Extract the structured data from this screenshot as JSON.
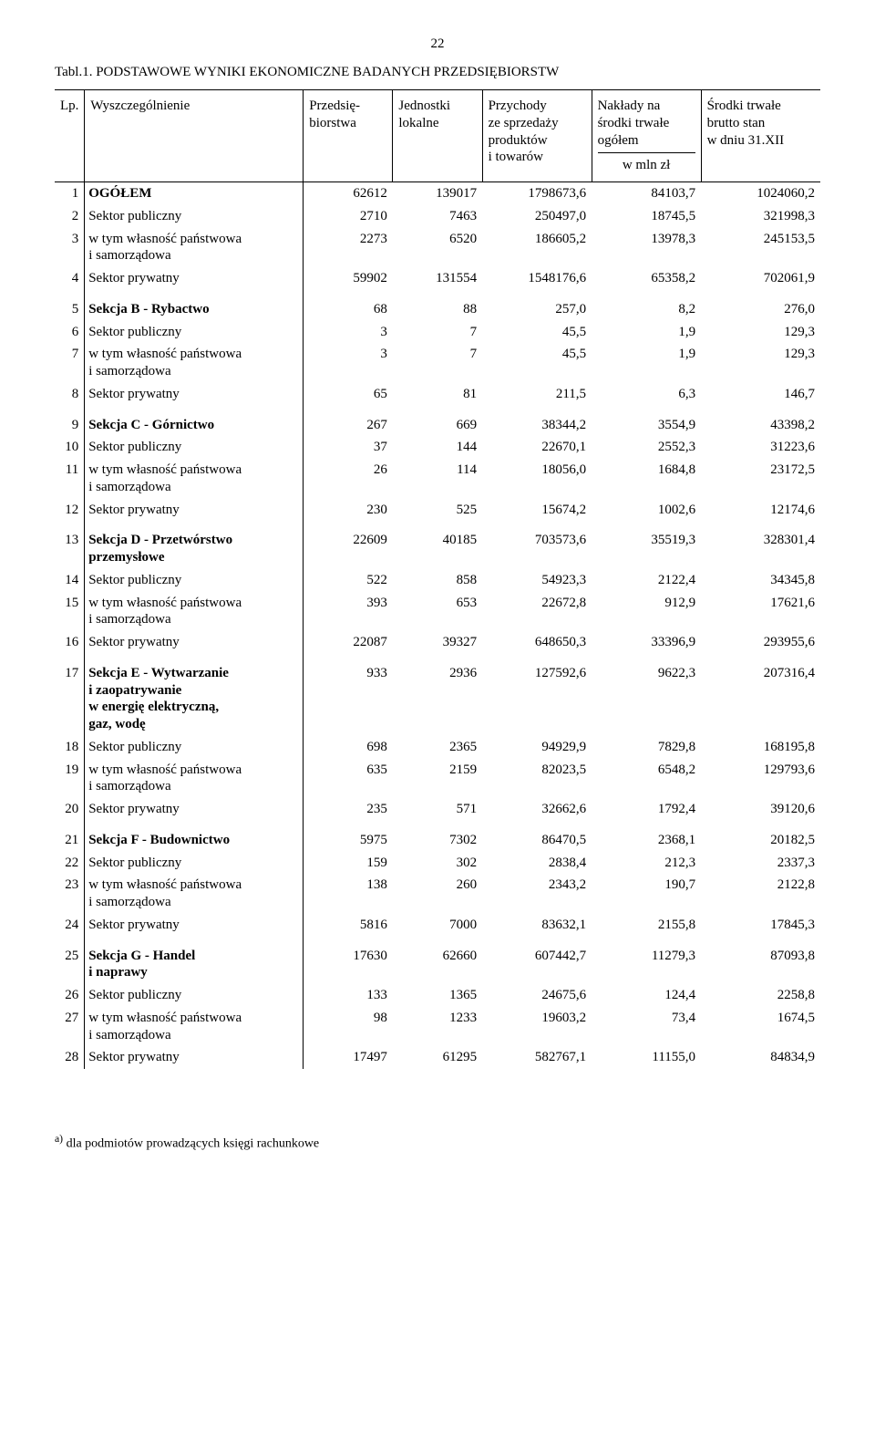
{
  "page_number": "22",
  "title": "Tabl.1. PODSTAWOWE WYNIKI EKONOMICZNE BADANYCH PRZEDSIĘBIORSTW",
  "headers": {
    "lp": "Lp.",
    "wysz": "Wyszczególnienie",
    "przedsieb": "Przedsię-\nbiorstwa",
    "jednostki": "Jednostki\nlokalne",
    "przychody": "Przychody\nze sprzedaży\nproduktów\ni towarów",
    "naklady": "Nakłady na\nśrodki trwałe\nogółem",
    "srodki": "Środki trwałe\nbrutto stan\nw dniu 31.XII",
    "unit": "w mln zł"
  },
  "footnote_marker": "a)",
  "footnote_text": " dla podmiotów prowadzących księgi rachunkowe",
  "sections": [
    {
      "rows": [
        {
          "n": "1",
          "label": "OGÓŁEM",
          "bold": true,
          "vals": [
            "62612",
            "139017",
            "1798673,6",
            "84103,7",
            "1024060,2"
          ]
        },
        {
          "n": "2",
          "label": "Sektor publiczny",
          "indent": "indent1",
          "vals": [
            "2710",
            "7463",
            "250497,0",
            "18745,5",
            "321998,3"
          ]
        },
        {
          "n": "3",
          "label": "w tym własność państwowa",
          "sub": "i samorządowa",
          "indent": "indent2",
          "vals": [
            "2273",
            "6520",
            "186605,2",
            "13978,3",
            "245153,5"
          ]
        },
        {
          "n": "4",
          "label": "Sektor prywatny",
          "indent": "indent1",
          "vals": [
            "59902",
            "131554",
            "1548176,6",
            "65358,2",
            "702061,9"
          ]
        }
      ]
    },
    {
      "rows": [
        {
          "n": "5",
          "label": "Sekcja B - Rybactwo",
          "bold": true,
          "vals": [
            "68",
            "88",
            "257,0",
            "8,2",
            "276,0"
          ]
        },
        {
          "n": "6",
          "label": "Sektor publiczny",
          "indent": "indent1",
          "vals": [
            "3",
            "7",
            "45,5",
            "1,9",
            "129,3"
          ]
        },
        {
          "n": "7",
          "label": "w tym własność państwowa",
          "sub": "i samorządowa",
          "indent": "indent2",
          "vals": [
            "3",
            "7",
            "45,5",
            "1,9",
            "129,3"
          ]
        },
        {
          "n": "8",
          "label": "Sektor prywatny",
          "indent": "indent1",
          "vals": [
            "65",
            "81",
            "211,5",
            "6,3",
            "146,7"
          ]
        }
      ]
    },
    {
      "rows": [
        {
          "n": "9",
          "label": "Sekcja C - Górnictwo",
          "bold": true,
          "vals": [
            "267",
            "669",
            "38344,2",
            "3554,9",
            "43398,2"
          ]
        },
        {
          "n": "10",
          "label": "Sektor publiczny",
          "indent": "indent1",
          "vals": [
            "37",
            "144",
            "22670,1",
            "2552,3",
            "31223,6"
          ]
        },
        {
          "n": "11",
          "label": "w tym własność państwowa",
          "sub": "i samorządowa",
          "indent": "indent2",
          "vals": [
            "26",
            "114",
            "18056,0",
            "1684,8",
            "23172,5"
          ]
        },
        {
          "n": "12",
          "label": "Sektor prywatny",
          "indent": "indent1",
          "vals": [
            "230",
            "525",
            "15674,2",
            "1002,6",
            "12174,6"
          ]
        }
      ]
    },
    {
      "rows": [
        {
          "n": "13",
          "label": "Sekcja D - Przetwórstwo",
          "bold": true,
          "subB": "przemysłowe",
          "vals": [
            "22609",
            "40185",
            "703573,6",
            "35519,3",
            "328301,4"
          ]
        },
        {
          "n": "14",
          "label": "Sektor publiczny",
          "indent": "indent1",
          "vals": [
            "522",
            "858",
            "54923,3",
            "2122,4",
            "34345,8"
          ]
        },
        {
          "n": "15",
          "label": "w tym własność państwowa",
          "sub": "i samorządowa",
          "indent": "indent2",
          "vals": [
            "393",
            "653",
            "22672,8",
            "912,9",
            "17621,6"
          ]
        },
        {
          "n": "16",
          "label": "Sektor prywatny",
          "indent": "indent1",
          "vals": [
            "22087",
            "39327",
            "648650,3",
            "33396,9",
            "293955,6"
          ]
        }
      ]
    },
    {
      "rows": [
        {
          "n": "17",
          "label": "Sekcja E - Wytwarzanie",
          "bold": true,
          "subMulti": [
            "i zaopatrywanie",
            "w energię elektryczną,",
            "gaz, wodę"
          ],
          "vals": [
            "933",
            "2936",
            "127592,6",
            "9622,3",
            "207316,4"
          ]
        },
        {
          "n": "18",
          "label": "Sektor publiczny",
          "indent": "indent1",
          "vals": [
            "698",
            "2365",
            "94929,9",
            "7829,8",
            "168195,8"
          ]
        },
        {
          "n": "19",
          "label": "w tym własność państwowa",
          "sub": "i samorządowa",
          "indent": "indent2",
          "vals": [
            "635",
            "2159",
            "82023,5",
            "6548,2",
            "129793,6"
          ]
        },
        {
          "n": "20",
          "label": "Sektor prywatny",
          "indent": "indent1",
          "vals": [
            "235",
            "571",
            "32662,6",
            "1792,4",
            "39120,6"
          ]
        }
      ]
    },
    {
      "rows": [
        {
          "n": "21",
          "label": "Sekcja F - Budownictwo",
          "bold": true,
          "vals": [
            "5975",
            "7302",
            "86470,5",
            "2368,1",
            "20182,5"
          ]
        },
        {
          "n": "22",
          "label": "Sektor publiczny",
          "indent": "indent1",
          "vals": [
            "159",
            "302",
            "2838,4",
            "212,3",
            "2337,3"
          ]
        },
        {
          "n": "23",
          "label": "w tym własność państwowa",
          "sub": "i samorządowa",
          "indent": "indent2",
          "vals": [
            "138",
            "260",
            "2343,2",
            "190,7",
            "2122,8"
          ]
        },
        {
          "n": "24",
          "label": "Sektor prywatny",
          "indent": "indent1",
          "vals": [
            "5816",
            "7000",
            "83632,1",
            "2155,8",
            "17845,3"
          ]
        }
      ]
    },
    {
      "rows": [
        {
          "n": "25",
          "label": "Sekcja G - Handel",
          "bold": true,
          "subB": "i naprawy",
          "vals": [
            "17630",
            "62660",
            "607442,7",
            "11279,3",
            "87093,8"
          ]
        },
        {
          "n": "26",
          "label": "Sektor publiczny",
          "indent": "indent1",
          "vals": [
            "133",
            "1365",
            "24675,6",
            "124,4",
            "2258,8"
          ]
        },
        {
          "n": "27",
          "label": "w tym własność państwowa",
          "sub": "i samorządowa",
          "indent": "indent2",
          "vals": [
            "98",
            "1233",
            "19603,2",
            "73,4",
            "1674,5"
          ]
        },
        {
          "n": "28",
          "label": "Sektor prywatny",
          "indent": "indent1",
          "vals": [
            "17497",
            "61295",
            "582767,1",
            "11155,0",
            "84834,9"
          ]
        }
      ]
    }
  ]
}
